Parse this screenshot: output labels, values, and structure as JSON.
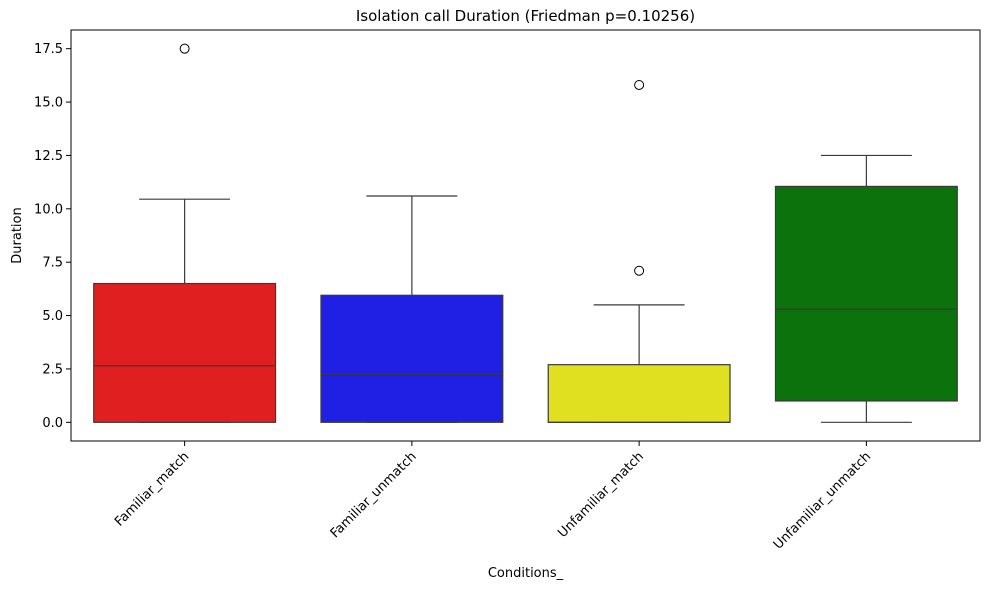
{
  "chart_data": {
    "type": "box",
    "title": "Isolation call Duration (Friedman p=0.10256)",
    "xlabel": "Conditions_",
    "ylabel": "Duration",
    "ylim": [
      -0.875,
      18.375
    ],
    "yticks": [
      0.0,
      2.5,
      5.0,
      7.5,
      10.0,
      12.5,
      15.0,
      17.5
    ],
    "ytick_labels": [
      "0.0",
      "2.5",
      "5.0",
      "7.5",
      "10.0",
      "12.5",
      "15.0",
      "17.5"
    ],
    "categories": [
      "Familiar_match",
      "Familiar_unmatch",
      "Unfamiliar_match",
      "Unfamiliar_unmatch"
    ],
    "colors": [
      "#e02020",
      "#2020e4",
      "#e0e020",
      "#0c730c"
    ],
    "boxes": [
      {
        "whisker_low": 0.0,
        "q1": 0.0,
        "median": 2.65,
        "q3": 6.5,
        "whisker_high": 10.45,
        "outliers": [
          17.5
        ]
      },
      {
        "whisker_low": 0.0,
        "q1": 0.0,
        "median": 2.25,
        "q3": 5.95,
        "whisker_high": 10.6,
        "outliers": []
      },
      {
        "whisker_low": 0.0,
        "q1": 0.0,
        "median": 0.0,
        "q3": 2.7,
        "whisker_high": 5.5,
        "outliers": [
          15.8,
          7.1
        ]
      },
      {
        "whisker_low": 0.0,
        "q1": 1.0,
        "median": 5.3,
        "q3": 11.05,
        "whisker_high": 12.5,
        "outliers": []
      }
    ],
    "grid": false,
    "legend": false
  }
}
